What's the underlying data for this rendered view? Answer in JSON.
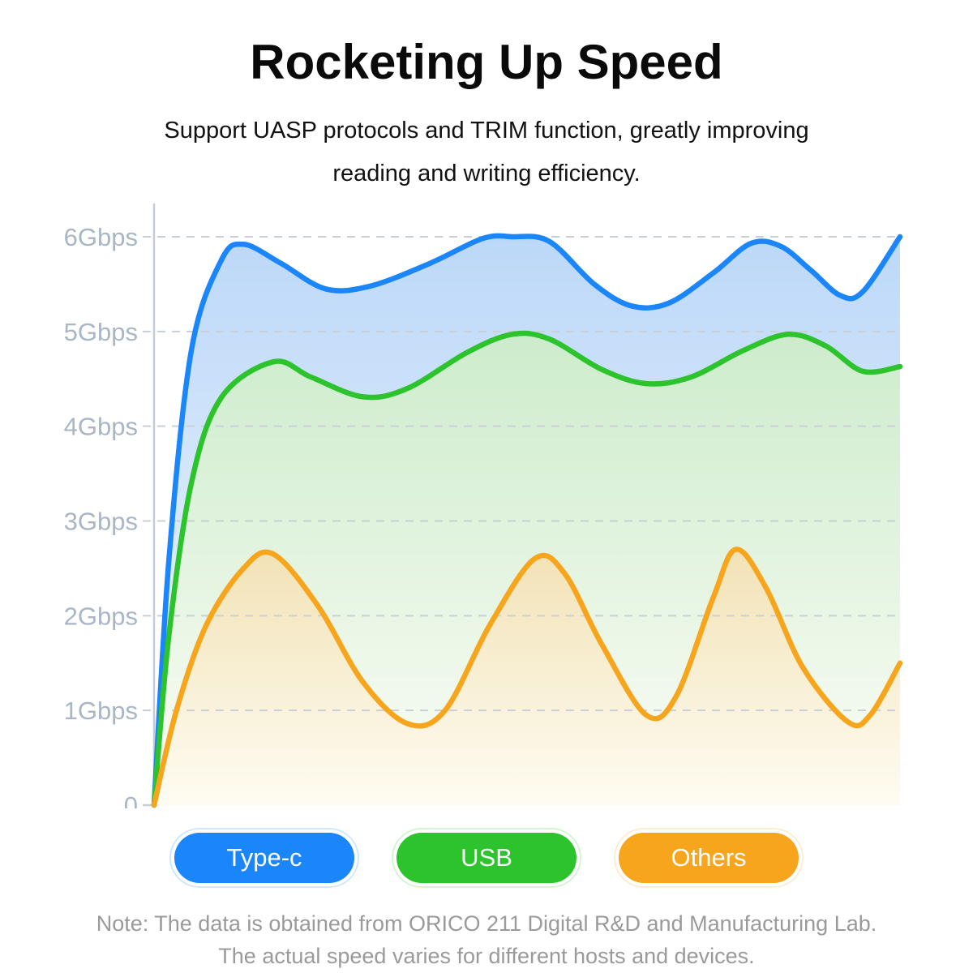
{
  "page": {
    "title": "Rocketing Up Speed",
    "subtitle_line1": "Support UASP protocols and TRIM function, greatly improving",
    "subtitle_line2": "reading and writing efficiency.",
    "note_line1": "Note: The data is obtained from ORICO 211 Digital R&D and Manufacturing Lab.",
    "note_line2": "The actual speed varies for different hosts and devices."
  },
  "colors": {
    "axis_line": "#c7ccd4",
    "grid_line": "#c9cfd8",
    "tick_label": "#a9b6c6",
    "note_text": "#9a9a9a"
  },
  "chart_data": {
    "type": "area",
    "title": "Rocketing Up Speed",
    "xlabel": "",
    "ylabel": "",
    "ylim": [
      0,
      6
    ],
    "x_range": [
      0,
      100
    ],
    "grid": "dashed-horizontal",
    "legend_position": "bottom",
    "yticks": [
      {
        "value": 6,
        "label": "6Gbps"
      },
      {
        "value": 5,
        "label": "5Gbps"
      },
      {
        "value": 4,
        "label": "4Gbps"
      },
      {
        "value": 3,
        "label": "3Gbps"
      },
      {
        "value": 2,
        "label": "2Gbps"
      },
      {
        "value": 1,
        "label": "1Gbps"
      },
      {
        "value": 0,
        "label": "0"
      }
    ],
    "series": [
      {
        "name": "Type-c",
        "color": "#1b86f9",
        "fill_top": "#bcd8f8",
        "fill_bottom": "#f4f9ff",
        "points": [
          [
            0,
            0
          ],
          [
            2,
            2.6
          ],
          [
            5,
            4.8
          ],
          [
            9,
            5.75
          ],
          [
            12,
            5.92
          ],
          [
            17,
            5.72
          ],
          [
            23,
            5.45
          ],
          [
            29,
            5.48
          ],
          [
            37,
            5.72
          ],
          [
            44,
            5.98
          ],
          [
            48,
            6.0
          ],
          [
            53,
            5.95
          ],
          [
            59,
            5.5
          ],
          [
            64,
            5.27
          ],
          [
            69,
            5.3
          ],
          [
            75,
            5.62
          ],
          [
            80,
            5.93
          ],
          [
            84,
            5.9
          ],
          [
            88,
            5.65
          ],
          [
            92,
            5.38
          ],
          [
            95,
            5.42
          ],
          [
            100,
            6.0
          ]
        ]
      },
      {
        "name": "USB",
        "color": "#2cc32c",
        "fill_top": "#cdeccc",
        "fill_bottom": "#fbfdf6",
        "points": [
          [
            0,
            0
          ],
          [
            2,
            1.8
          ],
          [
            5,
            3.4
          ],
          [
            9,
            4.3
          ],
          [
            16,
            4.68
          ],
          [
            21,
            4.52
          ],
          [
            28,
            4.31
          ],
          [
            34,
            4.4
          ],
          [
            42,
            4.78
          ],
          [
            48,
            4.97
          ],
          [
            53,
            4.92
          ],
          [
            60,
            4.6
          ],
          [
            66,
            4.45
          ],
          [
            72,
            4.52
          ],
          [
            79,
            4.8
          ],
          [
            85,
            4.97
          ],
          [
            90,
            4.85
          ],
          [
            95,
            4.58
          ],
          [
            100,
            4.63
          ]
        ]
      },
      {
        "name": "Others",
        "color": "#f6a51c",
        "fill_top": "#f2e2b6",
        "fill_bottom": "#fefcf2",
        "points": [
          [
            0,
            0
          ],
          [
            3,
            1.0
          ],
          [
            7,
            1.9
          ],
          [
            12,
            2.5
          ],
          [
            16,
            2.65
          ],
          [
            22,
            2.1
          ],
          [
            28,
            1.3
          ],
          [
            34,
            0.86
          ],
          [
            39,
            1.0
          ],
          [
            45,
            1.9
          ],
          [
            51,
            2.6
          ],
          [
            55,
            2.45
          ],
          [
            60,
            1.7
          ],
          [
            66,
            0.95
          ],
          [
            70,
            1.15
          ],
          [
            75,
            2.2
          ],
          [
            78,
            2.7
          ],
          [
            82,
            2.3
          ],
          [
            87,
            1.45
          ],
          [
            93,
            0.88
          ],
          [
            96,
            0.95
          ],
          [
            100,
            1.5
          ]
        ]
      }
    ]
  }
}
